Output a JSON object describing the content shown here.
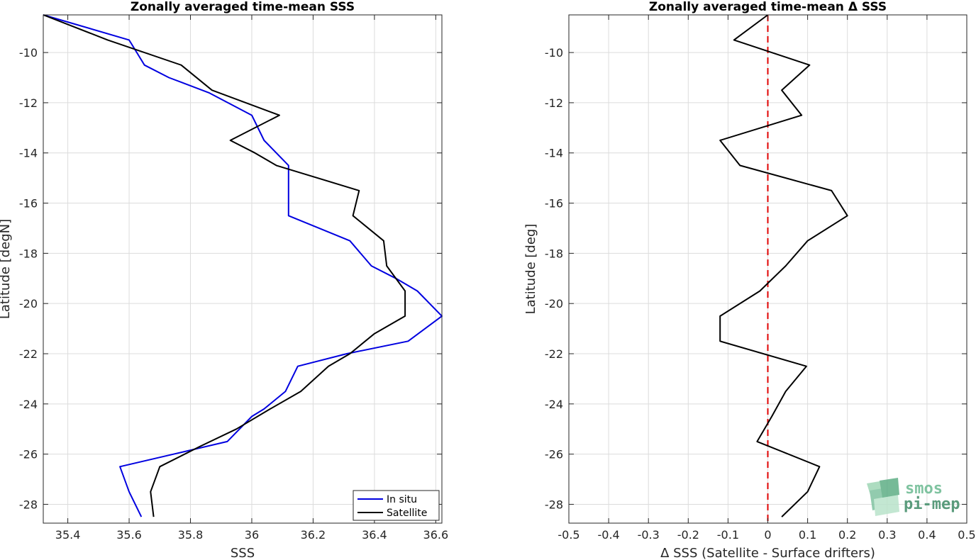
{
  "chart_data": [
    {
      "type": "line",
      "title": "Zonally averaged time-mean SSS",
      "xlabel": "SSS",
      "ylabel": "Latitude [degN]",
      "xlim": [
        35.32,
        36.62
      ],
      "ylim": [
        -28.75,
        -8.5
      ],
      "xticks": [
        35.4,
        35.6,
        35.8,
        36,
        36.2,
        36.4,
        36.6
      ],
      "xtick_labels": [
        "35.4",
        "35.6",
        "35.8",
        "36",
        "36.2",
        "36.4",
        "36.6"
      ],
      "yticks": [
        -10,
        -12,
        -14,
        -16,
        -18,
        -20,
        -22,
        -24,
        -26,
        -28
      ],
      "ytick_labels": [
        "-10",
        "-12",
        "-14",
        "-16",
        "-18",
        "-20",
        "-22",
        "-24",
        "-26",
        "-28"
      ],
      "grid": true,
      "legend_position": "bottom-right",
      "series": [
        {
          "name": "In situ",
          "color": "#0000e0",
          "points": [
            [
              35.32,
              -8.5
            ],
            [
              35.6,
              -9.5
            ],
            [
              35.65,
              -10.5
            ],
            [
              35.73,
              -11.0
            ],
            [
              35.86,
              -11.6
            ],
            [
              36.0,
              -12.5
            ],
            [
              36.04,
              -13.5
            ],
            [
              36.12,
              -14.5
            ],
            [
              36.12,
              -15.5
            ],
            [
              36.12,
              -16.5
            ],
            [
              36.32,
              -17.5
            ],
            [
              36.39,
              -18.5
            ],
            [
              36.47,
              -19.0
            ],
            [
              36.54,
              -19.5
            ],
            [
              36.62,
              -20.5
            ],
            [
              36.51,
              -21.5
            ],
            [
              36.31,
              -22.0
            ],
            [
              36.15,
              -22.5
            ],
            [
              36.11,
              -23.5
            ],
            [
              36.04,
              -24.2
            ],
            [
              36.0,
              -24.5
            ],
            [
              35.92,
              -25.5
            ],
            [
              35.78,
              -25.9
            ],
            [
              35.57,
              -26.5
            ],
            [
              35.6,
              -27.5
            ],
            [
              35.64,
              -28.5
            ]
          ]
        },
        {
          "name": "Satellite",
          "color": "#000000",
          "points": [
            [
              35.32,
              -8.5
            ],
            [
              35.53,
              -9.5
            ],
            [
              35.77,
              -10.5
            ],
            [
              35.87,
              -11.5
            ],
            [
              36.09,
              -12.5
            ],
            [
              35.93,
              -13.5
            ],
            [
              36.01,
              -14.0
            ],
            [
              36.08,
              -14.5
            ],
            [
              36.35,
              -15.5
            ],
            [
              36.33,
              -16.5
            ],
            [
              36.43,
              -17.5
            ],
            [
              36.44,
              -18.5
            ],
            [
              36.5,
              -19.5
            ],
            [
              36.5,
              -20.5
            ],
            [
              36.4,
              -21.2
            ],
            [
              36.32,
              -22.0
            ],
            [
              36.25,
              -22.5
            ],
            [
              36.16,
              -23.5
            ],
            [
              36.06,
              -24.2
            ],
            [
              35.95,
              -25.0
            ],
            [
              35.83,
              -25.7
            ],
            [
              35.7,
              -26.5
            ],
            [
              35.67,
              -27.5
            ],
            [
              35.68,
              -28.5
            ]
          ]
        }
      ]
    },
    {
      "type": "line",
      "title": "Zonally averaged time-mean Δ SSS",
      "xlabel": "Δ SSS (Satellite - Surface drifters)",
      "ylabel": "Latitude [deg]",
      "xlim": [
        -0.5,
        0.5
      ],
      "ylim": [
        -28.75,
        -8.5
      ],
      "xticks": [
        -0.5,
        -0.4,
        -0.3,
        -0.2,
        -0.1,
        0,
        0.1,
        0.2,
        0.3,
        0.4,
        0.5
      ],
      "xtick_labels": [
        "-0.5",
        "-0.4",
        "-0.3",
        "-0.2",
        "-0.1",
        "0",
        "0.1",
        "0.2",
        "0.3",
        "0.4",
        "0.5"
      ],
      "yticks": [
        -10,
        -12,
        -14,
        -16,
        -18,
        -20,
        -22,
        -24,
        -26,
        -28
      ],
      "ytick_labels": [
        "-10",
        "-12",
        "-14",
        "-16",
        "-18",
        "-20",
        "-22",
        "-24",
        "-26",
        "-28"
      ],
      "grid": true,
      "reference_line": {
        "x": 0,
        "color": "#e00000",
        "style": "dashed"
      },
      "series": [
        {
          "color": "#000000",
          "points": [
            [
              0.0,
              -8.5
            ],
            [
              -0.085,
              -9.5
            ],
            [
              0.105,
              -10.5
            ],
            [
              0.035,
              -11.5
            ],
            [
              0.085,
              -12.5
            ],
            [
              -0.12,
              -13.5
            ],
            [
              -0.07,
              -14.5
            ],
            [
              0.16,
              -15.5
            ],
            [
              0.2,
              -16.5
            ],
            [
              0.1,
              -17.5
            ],
            [
              0.045,
              -18.5
            ],
            [
              -0.02,
              -19.5
            ],
            [
              -0.12,
              -20.5
            ],
            [
              -0.12,
              -21.5
            ],
            [
              0.097,
              -22.5
            ],
            [
              0.045,
              -23.5
            ],
            [
              0.01,
              -24.5
            ],
            [
              -0.027,
              -25.5
            ],
            [
              0.13,
              -26.5
            ],
            [
              0.1,
              -27.5
            ],
            [
              0.035,
              -28.5
            ]
          ]
        }
      ]
    }
  ],
  "logo": {
    "line1": "smos",
    "line2": "pi-mep",
    "color": "#7fc3a0"
  }
}
